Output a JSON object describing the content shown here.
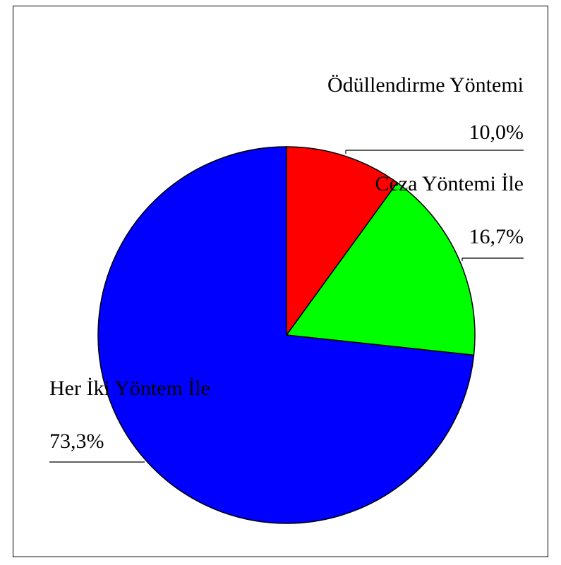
{
  "chart_data": {
    "type": "pie",
    "categories": [
      "Ödüllendirme Yöntemi",
      "Ceza Yöntemi İle",
      "Her İki Yöntem İle"
    ],
    "values": [
      10.0,
      16.7,
      73.3
    ],
    "value_labels": [
      "10,0%",
      "16,7%",
      "73,3%"
    ],
    "colors": [
      "#ff0000",
      "#00ff00",
      "#0000ff"
    ]
  }
}
